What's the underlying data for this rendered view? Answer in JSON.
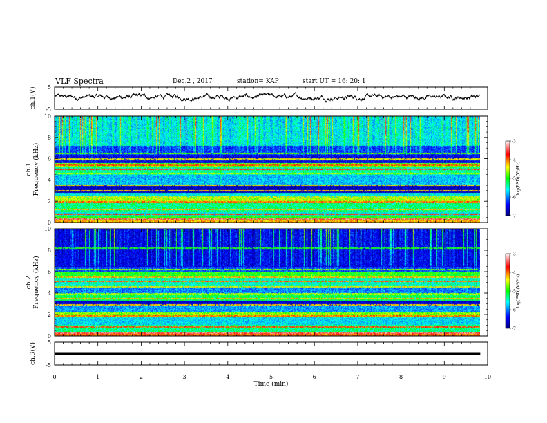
{
  "header": {
    "title": "VLF Spectra",
    "date": "Dec.2 , 2017",
    "station": "station= KAP",
    "start": "start UT =  16: 20: 1"
  },
  "chart_data": {
    "type": "heatmap",
    "x": {
      "label": "Time (min)",
      "ticks": [
        "0",
        "1",
        "2",
        "3",
        "4",
        "5",
        "6",
        "7",
        "8",
        "9",
        "10"
      ],
      "range": [
        0,
        10
      ],
      "data_end": 9.83
    },
    "panels": [
      {
        "name": "ch.1 waveform",
        "type": "line",
        "ylabel": "ch.1(V)",
        "ylim": [
          -5,
          5
        ],
        "yticks": [
          "5",
          "-5"
        ],
        "approx_mean_v": 0.5,
        "approx_amplitude_v": 1.5
      },
      {
        "name": "ch.1 spectrogram",
        "type": "heatmap",
        "ylabel": "ch.1\nFrequency (kHz)",
        "ylim": [
          0,
          10
        ],
        "yticks": [
          "0",
          "2",
          "4",
          "6",
          "8",
          "10"
        ],
        "colorbar": {
          "label": "log(PSD)(V²/Hz)",
          "range": [
            -7,
            -3
          ],
          "ticks": [
            "-3",
            "-4",
            "-5",
            "-6",
            "-7"
          ]
        },
        "spectral_bands": [
          {
            "from": 0.0,
            "to": 0.2,
            "level": -4.2
          },
          {
            "from": 0.2,
            "to": 0.6,
            "level": -5.0
          },
          {
            "from": 0.6,
            "to": 1.0,
            "level": -5.6
          },
          {
            "from": 1.0,
            "to": 1.9,
            "level": -5.3
          },
          {
            "from": 1.9,
            "to": 2.3,
            "level": -4.6
          },
          {
            "from": 2.3,
            "to": 2.8,
            "level": -5.6
          },
          {
            "from": 2.8,
            "to": 3.5,
            "level": -6.7
          },
          {
            "from": 3.5,
            "to": 4.5,
            "level": -5.8
          },
          {
            "from": 4.5,
            "to": 5.2,
            "level": -5.4
          },
          {
            "from": 5.2,
            "to": 5.6,
            "level": -4.8
          },
          {
            "from": 5.6,
            "to": 6.4,
            "level": -6.5
          },
          {
            "from": 6.4,
            "to": 7.2,
            "level": -6.2
          },
          {
            "from": 7.2,
            "to": 10.0,
            "level": -5.6
          }
        ],
        "band_lines_khz": [
          {
            "f": 0.3,
            "level": -3.4
          },
          {
            "f": 0.75,
            "level": -3.8
          },
          {
            "f": 1.2,
            "level": -4.2
          },
          {
            "f": 1.9,
            "level": -4.0
          },
          {
            "f": 2.4,
            "level": -4.5
          },
          {
            "f": 2.95,
            "level": -4.3
          },
          {
            "f": 3.5,
            "level": -4.4
          },
          {
            "f": 4.6,
            "level": -4.6
          },
          {
            "f": 5.0,
            "level": -3.6
          },
          {
            "f": 5.4,
            "level": -3.9
          },
          {
            "f": 5.95,
            "level": -4.4
          },
          {
            "f": 6.5,
            "level": -4.8
          }
        ]
      },
      {
        "name": "ch.2 spectrogram",
        "type": "heatmap",
        "ylabel": "ch.2\nFrequency (kHz)",
        "ylim": [
          0,
          10
        ],
        "yticks": [
          "0",
          "2",
          "4",
          "6",
          "8",
          "10"
        ],
        "colorbar": {
          "label": "log(PSD)(V²/Hz)",
          "range": [
            -7,
            -3
          ],
          "ticks": [
            "-3",
            "-4",
            "-5",
            "-6",
            "-7"
          ]
        },
        "spectral_bands": [
          {
            "from": 0.0,
            "to": 0.3,
            "level": -4.0
          },
          {
            "from": 0.3,
            "to": 1.0,
            "level": -5.3
          },
          {
            "from": 1.0,
            "to": 1.7,
            "level": -5.7
          },
          {
            "from": 1.7,
            "to": 2.2,
            "level": -4.7
          },
          {
            "from": 2.2,
            "to": 2.8,
            "level": -5.9
          },
          {
            "from": 2.8,
            "to": 3.3,
            "level": -6.6
          },
          {
            "from": 3.3,
            "to": 3.9,
            "level": -5.2
          },
          {
            "from": 3.9,
            "to": 4.5,
            "level": -6.0
          },
          {
            "from": 4.5,
            "to": 5.4,
            "level": -5.5
          },
          {
            "from": 5.4,
            "to": 6.0,
            "level": -5.0
          },
          {
            "from": 6.0,
            "to": 6.4,
            "level": -6.2
          },
          {
            "from": 6.4,
            "to": 10.0,
            "level": -6.5
          }
        ],
        "band_lines_khz": [
          {
            "f": 0.25,
            "level": -3.4
          },
          {
            "f": 0.8,
            "level": -3.9
          },
          {
            "f": 1.85,
            "level": -4.0
          },
          {
            "f": 2.9,
            "level": -4.3
          },
          {
            "f": 3.45,
            "level": -4.2
          },
          {
            "f": 3.9,
            "level": -4.6
          },
          {
            "f": 4.6,
            "level": -4.4
          },
          {
            "f": 5.1,
            "level": -4.0
          },
          {
            "f": 5.5,
            "level": -4.2
          },
          {
            "f": 6.2,
            "level": -4.7
          },
          {
            "f": 8.2,
            "level": -5.0
          }
        ]
      },
      {
        "name": "ch.3 waveform",
        "type": "line",
        "ylabel": "ch.3(V)",
        "ylim": [
          -5,
          5
        ],
        "yticks": [
          "5",
          "-5"
        ],
        "constant_v": 0
      }
    ]
  }
}
